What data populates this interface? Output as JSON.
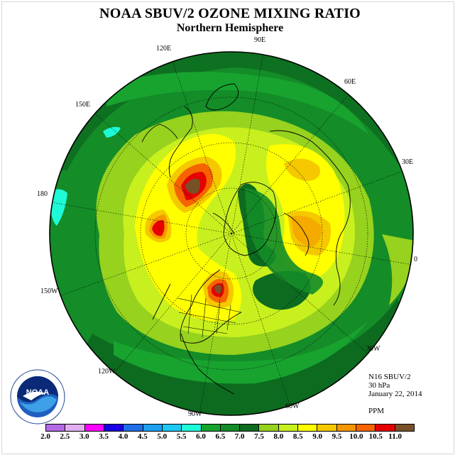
{
  "title": "NOAA SBUV/2 OZONE MIXING RATIO",
  "subtitle": "Northern Hemisphere",
  "longitudes": [
    "90E",
    "120E",
    "60E",
    "150E",
    "30E",
    "180",
    "0",
    "150W",
    "30W",
    "120W",
    "60W",
    "90W"
  ],
  "info": {
    "instrument": "N16 SBUV/2",
    "level": "30 hPa",
    "date": "January 22, 2014",
    "units": "PPM"
  },
  "logo": {
    "text": "NOAA",
    "icon": "noaa-logo"
  },
  "colorbar": {
    "ticks": [
      "2.0",
      "2.5",
      "3.0",
      "3.5",
      "4.0",
      "4.5",
      "5.0",
      "5.5",
      "6.0",
      "6.5",
      "7.0",
      "7.5",
      "8.0",
      "8.5",
      "9.0",
      "9.5",
      "10.0",
      "10.5",
      "11.0"
    ],
    "colors": [
      "#b469e6",
      "#e2aef0",
      "#ff00ff",
      "#1a00e6",
      "#1f6ee6",
      "#1e9ff0",
      "#1ec8f5",
      "#1efad7",
      "#18a32f",
      "#148c28",
      "#0d6b20",
      "#96d21e",
      "#c8f01e",
      "#ffff00",
      "#f5c800",
      "#f59600",
      "#f56400",
      "#e60000",
      "#785028"
    ]
  }
}
